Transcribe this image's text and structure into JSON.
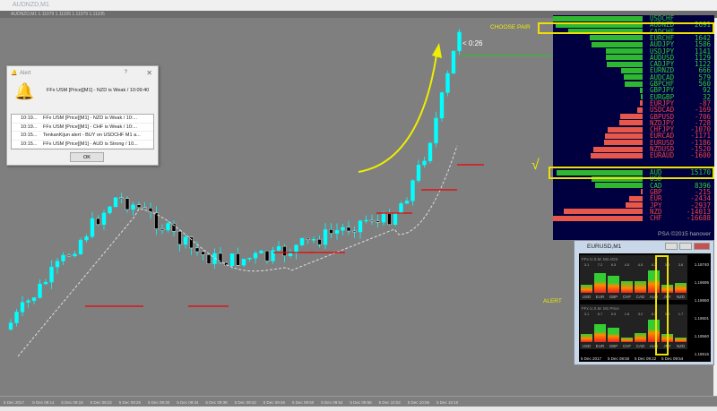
{
  "window": {
    "title": "AUDNZD,M1",
    "chart_header": "AUDNZD,M1  1.11079 1.11105 1.11079 1.11105"
  },
  "annotations": {
    "choose_pair": "CHOOSE PAIR",
    "alert": "ALERT",
    "timer": "< 0:26",
    "check": "√"
  },
  "time_axis": [
    "5 Dec 2017",
    "5 Dec 09:14",
    "5 Dec 09:18",
    "5 Dec 09:22",
    "5 Dec 09:26",
    "5 Dec 09:30",
    "5 Dec 09:34",
    "5 Dec 09:38",
    "5 Dec 09:42",
    "5 Dec 09:46",
    "5 Dec 09:50",
    "5 Dec 09:54",
    "5 Dec 09:58",
    "5 Dec 10:02",
    "5 Dec 10:06",
    "5 Dec 10:10"
  ],
  "strength_panel": {
    "pairs": [
      {
        "name": "USDCHF",
        "value": ""
      },
      {
        "name": "AUDNZD",
        "value": "2691"
      },
      {
        "name": "CADCHF",
        "value": ""
      },
      {
        "name": "EURCHF",
        "value": "1642"
      },
      {
        "name": "AUDJPY",
        "value": "1586"
      },
      {
        "name": "USDJPY",
        "value": "1141"
      },
      {
        "name": "AUDUSD",
        "value": "1129"
      },
      {
        "name": "CADJPY",
        "value": "1122"
      },
      {
        "name": "EURNZD",
        "value": "666"
      },
      {
        "name": "AUDCAD",
        "value": "579"
      },
      {
        "name": "GBPCHF",
        "value": "560"
      },
      {
        "name": "GBPJPY",
        "value": "92"
      },
      {
        "name": "EURGBP",
        "value": "32"
      },
      {
        "name": "EURJPY",
        "value": "-87"
      },
      {
        "name": "USDCAD",
        "value": "-169"
      },
      {
        "name": "GBPUSD",
        "value": "-706"
      },
      {
        "name": "NZDJPY",
        "value": "-728"
      },
      {
        "name": "CHFJPY",
        "value": "-1070"
      },
      {
        "name": "EURCAD",
        "value": "-1171"
      },
      {
        "name": "EURUSD",
        "value": "-1186"
      },
      {
        "name": "NZDUSD",
        "value": "-1520"
      },
      {
        "name": "EURAUD",
        "value": "-1600"
      }
    ],
    "currencies": [
      {
        "name": "AUD",
        "value": "15170"
      },
      {
        "name": "USD",
        "value": ""
      },
      {
        "name": "CAD",
        "value": "8396"
      },
      {
        "name": "GBP",
        "value": "-215"
      },
      {
        "name": "EUR",
        "value": "-2434"
      },
      {
        "name": "JPY",
        "value": "-2937"
      },
      {
        "name": "NZD",
        "value": "-14013"
      },
      {
        "name": "CHF",
        "value": "-16688"
      }
    ],
    "footer": "PSA ©2015 hanover",
    "colors": {
      "positive": "#2fb82f",
      "negative": "#e8584a",
      "background": "#000040",
      "highlight": "#f0e000"
    }
  },
  "alert_dialog": {
    "title": "Alert",
    "help": "?",
    "close": "✕",
    "message": "FFx USM [Price][M1] - NZD is Weak / 10:09:40",
    "items": [
      {
        "time": "10:19...",
        "text": "FFx USM [Price][M1] - NZD is Weak / 10:..."
      },
      {
        "time": "10:19...",
        "text": "FFx USM [Price][M1] - CHF is Weak / 10:..."
      },
      {
        "time": "10:15...",
        "text": "TenkanKijun alert - BUY on USDCHF M1 a..."
      },
      {
        "time": "10:15...",
        "text": "FFx USM [Price][M1] - AUD is Strong / 10..."
      }
    ],
    "ok": "OK"
  },
  "mini_window": {
    "title": "EURUSD,M1",
    "currencies": [
      "USD",
      "EUR",
      "GBP",
      "CHF",
      "CAD",
      "AUD",
      "JPY",
      "NZD"
    ],
    "top": {
      "header": "FFx U.S.M.   M1   ADX",
      "values": [
        "3.1",
        "7.2",
        "6.5",
        "4.5",
        "4.5",
        "8.2",
        "3.0",
        "3.6"
      ]
    },
    "bottom": {
      "header": "FFx U.S.M.   M1   Price",
      "values": [
        "3.1",
        "6.7",
        "5.5",
        "1.8",
        "3.2",
        "8.2",
        "3.0",
        "1.7"
      ]
    },
    "prices": [
      "1.18740",
      "1.18695",
      "1.18650",
      "1.18601",
      "1.18560",
      "1.18515"
    ],
    "times": [
      "5 Dec 2017",
      "5 Dec 08:50",
      "5 Dec 09:22",
      "5 Dec 09:54"
    ]
  }
}
